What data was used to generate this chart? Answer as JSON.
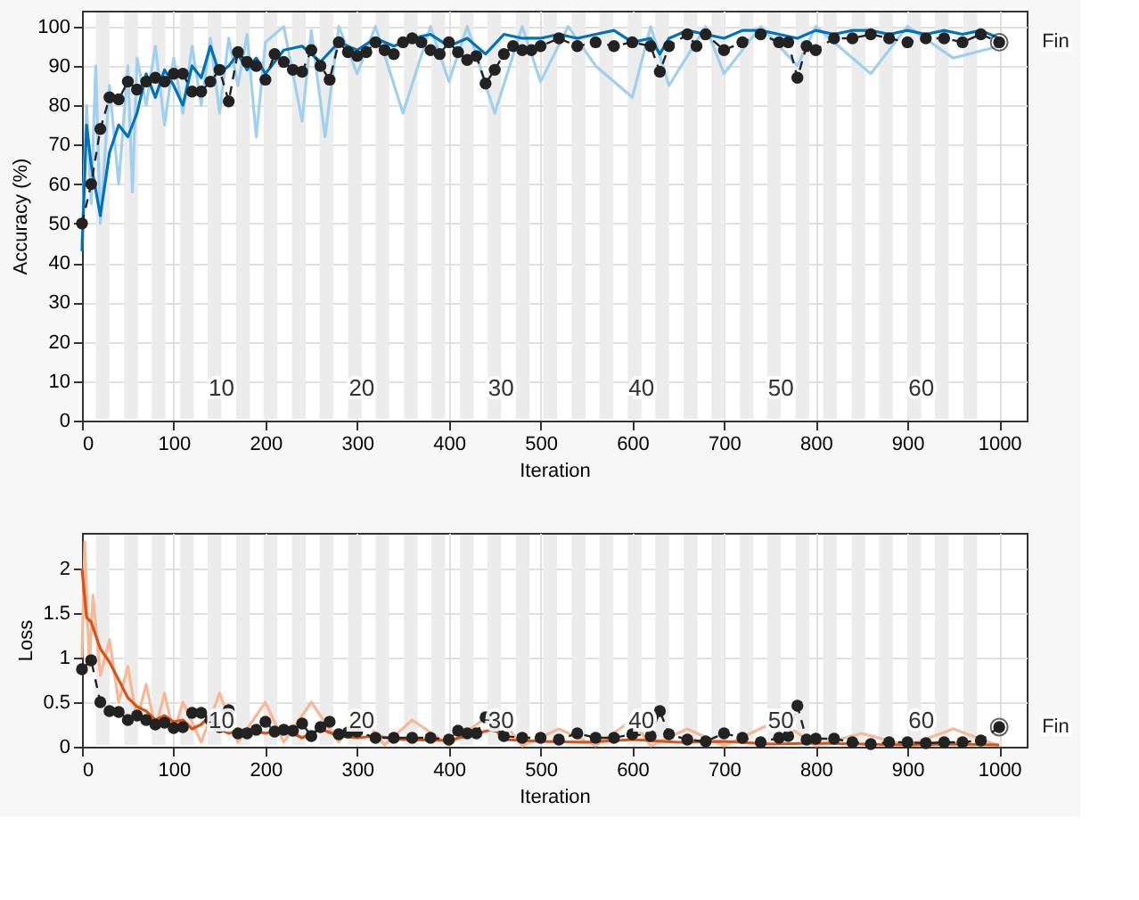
{
  "chart_data": [
    {
      "type": "line",
      "xlabel": "Iteration",
      "ylabel": "Accuracy (%)",
      "xlim": [
        0,
        1030
      ],
      "ylim": [
        0,
        104
      ],
      "xticks": [
        0,
        100,
        200,
        300,
        400,
        500,
        600,
        700,
        800,
        900,
        1000
      ],
      "yticks": [
        0,
        10,
        20,
        30,
        40,
        50,
        60,
        70,
        80,
        90,
        100
      ],
      "grid": true,
      "bands": [
        {
          "axis": "x",
          "from": 15,
          "to": 30,
          "color": "#ececec"
        },
        {
          "axis": "x",
          "from": 46,
          "to": 61,
          "color": "#ececec"
        },
        {
          "axis": "x",
          "from": 76,
          "to": 91,
          "color": "#ececec"
        },
        {
          "axis": "x",
          "from": 107,
          "to": 122,
          "color": "#ececec"
        },
        {
          "axis": "x",
          "from": 137,
          "to": 152,
          "color": "#ececec"
        },
        {
          "axis": "x",
          "from": 168,
          "to": 183,
          "color": "#ececec"
        },
        {
          "axis": "x",
          "from": 198,
          "to": 213,
          "color": "#ececec"
        },
        {
          "axis": "x",
          "from": 229,
          "to": 244,
          "color": "#ececec"
        },
        {
          "axis": "x",
          "from": 259,
          "to": 274,
          "color": "#ececec"
        },
        {
          "axis": "x",
          "from": 290,
          "to": 305,
          "color": "#ececec"
        },
        {
          "axis": "x",
          "from": 320,
          "to": 335,
          "color": "#ececec"
        },
        {
          "axis": "x",
          "from": 351,
          "to": 366,
          "color": "#ececec"
        },
        {
          "axis": "x",
          "from": 381,
          "to": 396,
          "color": "#ececec"
        },
        {
          "axis": "x",
          "from": 412,
          "to": 427,
          "color": "#ececec"
        },
        {
          "axis": "x",
          "from": 442,
          "to": 457,
          "color": "#ececec"
        },
        {
          "axis": "x",
          "from": 473,
          "to": 488,
          "color": "#ececec"
        },
        {
          "axis": "x",
          "from": 503,
          "to": 518,
          "color": "#ececec"
        },
        {
          "axis": "x",
          "from": 534,
          "to": 549,
          "color": "#ececec"
        },
        {
          "axis": "x",
          "from": 564,
          "to": 579,
          "color": "#ececec"
        },
        {
          "axis": "x",
          "from": 595,
          "to": 610,
          "color": "#ececec"
        },
        {
          "axis": "x",
          "from": 625,
          "to": 640,
          "color": "#ececec"
        },
        {
          "axis": "x",
          "from": 656,
          "to": 671,
          "color": "#ececec"
        },
        {
          "axis": "x",
          "from": 686,
          "to": 701,
          "color": "#ececec"
        },
        {
          "axis": "x",
          "from": 717,
          "to": 732,
          "color": "#ececec"
        },
        {
          "axis": "x",
          "from": 747,
          "to": 762,
          "color": "#ececec"
        },
        {
          "axis": "x",
          "from": 778,
          "to": 793,
          "color": "#ececec"
        },
        {
          "axis": "x",
          "from": 808,
          "to": 823,
          "color": "#ececec"
        },
        {
          "axis": "x",
          "from": 839,
          "to": 854,
          "color": "#ececec"
        },
        {
          "axis": "x",
          "from": 869,
          "to": 884,
          "color": "#ececec"
        },
        {
          "axis": "x",
          "from": 900,
          "to": 915,
          "color": "#ececec"
        },
        {
          "axis": "x",
          "from": 930,
          "to": 945,
          "color": "#ececec"
        },
        {
          "axis": "x",
          "from": 961,
          "to": 976,
          "color": "#ececec"
        }
      ],
      "series": [
        {
          "color": "#9fd0ef",
          "marker": "none",
          "line_style": "solid",
          "x": [
            0,
            5,
            10,
            15,
            20,
            30,
            40,
            50,
            55,
            60,
            70,
            80,
            90,
            100,
            110,
            120,
            130,
            140,
            150,
            160,
            170,
            180,
            190,
            200,
            220,
            240,
            250,
            265,
            280,
            300,
            320,
            350,
            380,
            400,
            420,
            450,
            480,
            500,
            530,
            560,
            600,
            620,
            640,
            680,
            700,
            740,
            780,
            800,
            860,
            900,
            950,
            1000
          ],
          "values": [
            45,
            80,
            55,
            90,
            50,
            85,
            60,
            90,
            58,
            92,
            80,
            95,
            75,
            92,
            78,
            95,
            80,
            97,
            78,
            97,
            85,
            98,
            72,
            96,
            100,
            76,
            99,
            72,
            100,
            88,
            100,
            78,
            100,
            86,
            100,
            78,
            100,
            86,
            100,
            90,
            82,
            100,
            85,
            100,
            88,
            100,
            90,
            100,
            88,
            100,
            92,
            95
          ]
        },
        {
          "color": "#0072bd",
          "marker": "none",
          "line_style": "solid",
          "x": [
            0,
            5,
            10,
            20,
            30,
            40,
            50,
            60,
            70,
            80,
            90,
            100,
            110,
            120,
            130,
            140,
            150,
            160,
            170,
            180,
            190,
            200,
            220,
            240,
            260,
            280,
            300,
            320,
            340,
            360,
            380,
            400,
            420,
            440,
            460,
            480,
            500,
            520,
            540,
            560,
            580,
            600,
            620,
            630,
            640,
            660,
            680,
            700,
            720,
            740,
            760,
            780,
            800,
            820,
            840,
            860,
            880,
            900,
            920,
            940,
            960,
            980,
            1000
          ],
          "values": [
            43,
            75,
            65,
            52,
            68,
            75,
            72,
            78,
            88,
            82,
            89,
            85,
            80,
            90,
            87,
            95,
            88,
            90,
            93,
            89,
            92,
            88,
            94,
            95,
            91,
            96,
            94,
            97,
            95,
            97,
            98,
            95,
            97,
            93,
            98,
            97,
            97,
            98,
            97,
            98,
            99,
            96,
            97,
            93,
            97,
            99,
            98,
            97,
            99,
            99,
            98,
            97,
            99,
            98,
            99,
            99,
            98,
            99,
            98,
            99,
            98,
            99,
            97
          ]
        },
        {
          "color": "#222222",
          "marker": "circle",
          "line_style": "dashed",
          "x": [
            0,
            10,
            20,
            30,
            40,
            50,
            60,
            70,
            80,
            90,
            100,
            110,
            120,
            130,
            140,
            150,
            160,
            170,
            180,
            190,
            200,
            210,
            220,
            230,
            240,
            250,
            260,
            270,
            280,
            290,
            300,
            310,
            320,
            330,
            340,
            350,
            360,
            370,
            380,
            390,
            400,
            410,
            420,
            430,
            440,
            450,
            460,
            470,
            480,
            490,
            500,
            520,
            540,
            560,
            580,
            600,
            620,
            630,
            640,
            660,
            670,
            680,
            700,
            720,
            740,
            760,
            770,
            780,
            790,
            800,
            820,
            840,
            860,
            880,
            900,
            920,
            940,
            960,
            980,
            1000
          ],
          "values": [
            50,
            60,
            74,
            82,
            81.5,
            86,
            84,
            86,
            87,
            86,
            88,
            88,
            83.5,
            83.5,
            86,
            89,
            81,
            93.5,
            91,
            90,
            86.5,
            93,
            91,
            89,
            88.5,
            94,
            90,
            86.5,
            96,
            93.5,
            92.5,
            93.5,
            96,
            94,
            93,
            96,
            97,
            96,
            94,
            93,
            96,
            93.5,
            91.5,
            92.5,
            85.5,
            89,
            93,
            95,
            94,
            94,
            95,
            97,
            95,
            96,
            95,
            96,
            95,
            88.5,
            95,
            98,
            95,
            98,
            94,
            96,
            98,
            96,
            96,
            87,
            95,
            94,
            97,
            97,
            98,
            97,
            96,
            97,
            97,
            96,
            98,
            96
          ]
        }
      ],
      "annotations": [
        {
          "text": "10",
          "x": 152,
          "y": 5
        },
        {
          "text": "20",
          "x": 305,
          "y": 5
        },
        {
          "text": "30",
          "x": 457,
          "y": 5
        },
        {
          "text": "40",
          "x": 610,
          "y": 5
        },
        {
          "text": "50",
          "x": 762,
          "y": 5
        },
        {
          "text": "60",
          "x": 915,
          "y": 5
        },
        {
          "text": "Fin",
          "x": 1000,
          "y": 96
        }
      ]
    },
    {
      "type": "line",
      "xlabel": "Iteration",
      "ylabel": "Loss",
      "xlim": [
        0,
        1030
      ],
      "ylim": [
        0,
        2.4
      ],
      "xticks": [
        0,
        100,
        200,
        300,
        400,
        500,
        600,
        700,
        800,
        900,
        1000
      ],
      "yticks": [
        0,
        0.5,
        1,
        1.5,
        2
      ],
      "grid": true,
      "bands": [
        {
          "axis": "x",
          "from": 15,
          "to": 30,
          "color": "#ececec"
        },
        {
          "axis": "x",
          "from": 46,
          "to": 61,
          "color": "#ececec"
        },
        {
          "axis": "x",
          "from": 76,
          "to": 91,
          "color": "#ececec"
        },
        {
          "axis": "x",
          "from": 107,
          "to": 122,
          "color": "#ececec"
        },
        {
          "axis": "x",
          "from": 137,
          "to": 152,
          "color": "#ececec"
        },
        {
          "axis": "x",
          "from": 168,
          "to": 183,
          "color": "#ececec"
        },
        {
          "axis": "x",
          "from": 198,
          "to": 213,
          "color": "#ececec"
        },
        {
          "axis": "x",
          "from": 229,
          "to": 244,
          "color": "#ececec"
        },
        {
          "axis": "x",
          "from": 259,
          "to": 274,
          "color": "#ececec"
        },
        {
          "axis": "x",
          "from": 290,
          "to": 305,
          "color": "#ececec"
        },
        {
          "axis": "x",
          "from": 320,
          "to": 335,
          "color": "#ececec"
        },
        {
          "axis": "x",
          "from": 351,
          "to": 366,
          "color": "#ececec"
        },
        {
          "axis": "x",
          "from": 381,
          "to": 396,
          "color": "#ececec"
        },
        {
          "axis": "x",
          "from": 412,
          "to": 427,
          "color": "#ececec"
        },
        {
          "axis": "x",
          "from": 442,
          "to": 457,
          "color": "#ececec"
        },
        {
          "axis": "x",
          "from": 473,
          "to": 488,
          "color": "#ececec"
        },
        {
          "axis": "x",
          "from": 503,
          "to": 518,
          "color": "#ececec"
        },
        {
          "axis": "x",
          "from": 534,
          "to": 549,
          "color": "#ececec"
        },
        {
          "axis": "x",
          "from": 564,
          "to": 579,
          "color": "#ececec"
        },
        {
          "axis": "x",
          "from": 595,
          "to": 610,
          "color": "#ececec"
        },
        {
          "axis": "x",
          "from": 625,
          "to": 640,
          "color": "#ececec"
        },
        {
          "axis": "x",
          "from": 656,
          "to": 671,
          "color": "#ececec"
        },
        {
          "axis": "x",
          "from": 686,
          "to": 701,
          "color": "#ececec"
        },
        {
          "axis": "x",
          "from": 717,
          "to": 732,
          "color": "#ececec"
        },
        {
          "axis": "x",
          "from": 747,
          "to": 762,
          "color": "#ececec"
        },
        {
          "axis": "x",
          "from": 778,
          "to": 793,
          "color": "#ececec"
        },
        {
          "axis": "x",
          "from": 808,
          "to": 823,
          "color": "#ececec"
        },
        {
          "axis": "x",
          "from": 839,
          "to": 854,
          "color": "#ececec"
        },
        {
          "axis": "x",
          "from": 869,
          "to": 884,
          "color": "#ececec"
        },
        {
          "axis": "x",
          "from": 900,
          "to": 915,
          "color": "#ececec"
        },
        {
          "axis": "x",
          "from": 930,
          "to": 945,
          "color": "#ececec"
        },
        {
          "axis": "x",
          "from": 961,
          "to": 976,
          "color": "#ececec"
        }
      ],
      "series": [
        {
          "color": "#f6b896",
          "marker": "none",
          "line_style": "solid",
          "x": [
            0,
            3,
            8,
            12,
            20,
            30,
            40,
            50,
            60,
            70,
            80,
            90,
            100,
            110,
            130,
            150,
            170,
            200,
            220,
            250,
            280,
            300,
            330,
            360,
            400,
            450,
            480,
            520,
            560,
            600,
            620,
            660,
            700,
            760,
            800,
            850,
            900,
            950,
            1000
          ],
          "values": [
            1.0,
            2.3,
            0.9,
            1.7,
            0.8,
            1.2,
            0.5,
            0.9,
            0.3,
            0.7,
            0.2,
            0.6,
            0.15,
            0.5,
            0.05,
            0.6,
            0.05,
            0.5,
            0.05,
            0.5,
            0.05,
            0.4,
            0.02,
            0.3,
            0.02,
            0.4,
            0.01,
            0.2,
            0.01,
            0.3,
            0.01,
            0.2,
            0.01,
            0.3,
            0.01,
            0.15,
            0.01,
            0.2,
            0.01
          ]
        },
        {
          "color": "#d95319",
          "marker": "none",
          "line_style": "solid",
          "x": [
            0,
            5,
            10,
            20,
            30,
            40,
            50,
            60,
            70,
            80,
            90,
            100,
            110,
            120,
            130,
            140,
            150,
            160,
            180,
            200,
            220,
            240,
            260,
            280,
            300,
            320,
            350,
            400,
            450,
            460,
            500,
            550,
            600,
            650,
            700,
            750,
            800,
            850,
            900,
            950,
            1000
          ],
          "values": [
            2.0,
            1.45,
            1.4,
            1.1,
            0.95,
            0.75,
            0.55,
            0.45,
            0.4,
            0.3,
            0.35,
            0.28,
            0.3,
            0.2,
            0.25,
            0.35,
            0.2,
            0.15,
            0.2,
            0.15,
            0.2,
            0.1,
            0.2,
            0.12,
            0.1,
            0.12,
            0.08,
            0.07,
            0.2,
            0.08,
            0.06,
            0.05,
            0.08,
            0.05,
            0.06,
            0.03,
            0.04,
            0.03,
            0.02,
            0.03,
            0.02
          ]
        },
        {
          "color": "#222222",
          "marker": "circle",
          "line_style": "dashed",
          "x": [
            0,
            10,
            20,
            30,
            40,
            50,
            60,
            70,
            80,
            90,
            100,
            110,
            120,
            130,
            140,
            150,
            160,
            170,
            180,
            190,
            200,
            210,
            220,
            230,
            240,
            250,
            260,
            270,
            280,
            290,
            300,
            320,
            340,
            360,
            380,
            400,
            410,
            420,
            430,
            440,
            450,
            460,
            480,
            500,
            520,
            540,
            560,
            580,
            600,
            620,
            630,
            640,
            660,
            680,
            700,
            720,
            740,
            760,
            770,
            780,
            790,
            800,
            820,
            840,
            860,
            880,
            900,
            920,
            940,
            960,
            980,
            1000
          ],
          "values": [
            0.87,
            0.97,
            0.5,
            0.4,
            0.39,
            0.3,
            0.35,
            0.3,
            0.25,
            0.27,
            0.21,
            0.22,
            0.38,
            0.38,
            0.3,
            0.22,
            0.41,
            0.15,
            0.15,
            0.19,
            0.28,
            0.17,
            0.19,
            0.18,
            0.26,
            0.12,
            0.22,
            0.28,
            0.14,
            0.16,
            0.17,
            0.1,
            0.1,
            0.1,
            0.1,
            0.08,
            0.18,
            0.15,
            0.15,
            0.33,
            0.23,
            0.12,
            0.1,
            0.1,
            0.08,
            0.15,
            0.1,
            0.1,
            0.14,
            0.12,
            0.4,
            0.14,
            0.08,
            0.06,
            0.15,
            0.1,
            0.05,
            0.1,
            0.12,
            0.46,
            0.08,
            0.09,
            0.09,
            0.05,
            0.03,
            0.05,
            0.05,
            0.04,
            0.05,
            0.05,
            0.07,
            0.22
          ]
        }
      ],
      "annotations": [
        {
          "text": "10",
          "x": 152,
          "y": 0.15
        },
        {
          "text": "20",
          "x": 305,
          "y": 0.15
        },
        {
          "text": "30",
          "x": 457,
          "y": 0.15
        },
        {
          "text": "40",
          "x": 610,
          "y": 0.15
        },
        {
          "text": "50",
          "x": 762,
          "y": 0.15
        },
        {
          "text": "60",
          "x": 915,
          "y": 0.15
        },
        {
          "text": "Fin",
          "x": 1000,
          "y": 0.22
        }
      ]
    }
  ]
}
